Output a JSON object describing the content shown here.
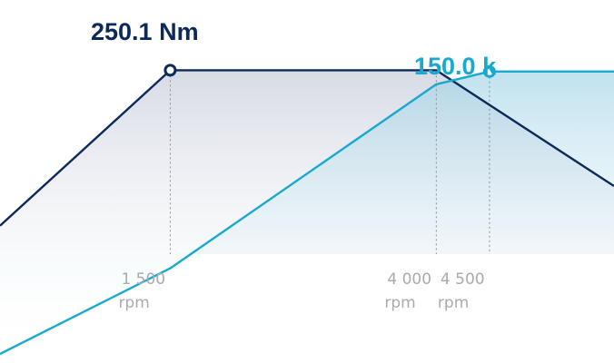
{
  "chart_data": {
    "type": "area",
    "title": "",
    "xlabel": "",
    "ylabel": "",
    "x_unit": "rpm",
    "x_visible_range": [
      -100,
      5670
    ],
    "grid": false,
    "legend": "none",
    "x_ticks": [
      {
        "value": 1500,
        "label": "1 500",
        "unit": "rpm"
      },
      {
        "value": 4000,
        "label": "4 000",
        "unit": "rpm"
      },
      {
        "value": 4500,
        "label": "4 500",
        "unit": "rpm"
      }
    ],
    "series": [
      {
        "key": "torque",
        "color": "#0b2a5b",
        "peak_label": "250.1 Nm",
        "peak_x": 1500,
        "ylim": [
          0,
          312
        ],
        "points": [
          [
            -100,
            113
          ],
          [
            1500,
            250.1
          ],
          [
            4000,
            250.1
          ],
          [
            5670,
            148
          ]
        ]
      },
      {
        "key": "power",
        "color": "#17a9cf",
        "peak_label": "150.0 k",
        "peak_x": 4500,
        "ylim": [
          0,
          188
        ],
        "points": [
          [
            -100,
            0
          ],
          [
            1500,
            45.5
          ],
          [
            4000,
            143.2
          ],
          [
            4500,
            150.0
          ],
          [
            5670,
            150.0
          ]
        ]
      }
    ]
  }
}
